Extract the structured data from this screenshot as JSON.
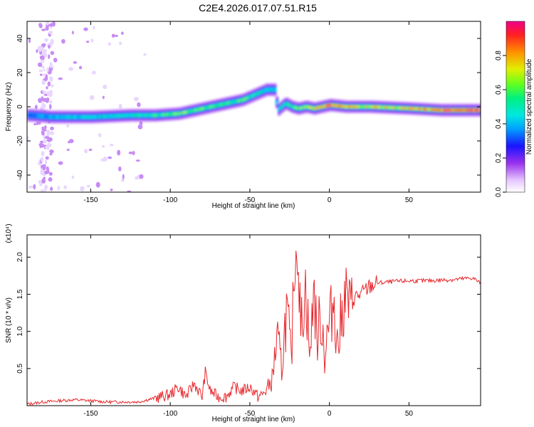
{
  "title": "C2E4.2026.017.07.51.R15",
  "chart_data": [
    {
      "type": "heatmap",
      "xlabel": "Height of straight line (km)",
      "ylabel": "Frequency (Hz)",
      "xlim": [
        -190,
        95
      ],
      "ylim": [
        -50,
        50
      ],
      "x_ticks": [
        -150,
        -100,
        -50,
        0,
        50
      ],
      "x_tick_labels": [
        "-150",
        "-100",
        "-50",
        "0",
        "50"
      ],
      "y_ticks": [
        -40,
        -20,
        0,
        20,
        40
      ],
      "y_tick_labels": [
        "-40",
        "-20",
        "0",
        "20",
        "40"
      ],
      "colorbar": {
        "label": "Normalized spectral amplitude",
        "range": [
          0,
          1
        ],
        "ticks": [
          0.0,
          0.2,
          0.4,
          0.6,
          0.8
        ],
        "tick_labels": [
          "0.0",
          "0.2",
          "0.4",
          "0.6",
          "0.8"
        ]
      },
      "ridge": {
        "x": [
          -188,
          -175,
          -150,
          -125,
          -110,
          -95,
          -85,
          -75,
          -65,
          -55,
          -50,
          -45,
          -40,
          -35,
          -33,
          -28,
          -24,
          -20,
          -15,
          -10,
          -5,
          0,
          10,
          25,
          50,
          70,
          80,
          95
        ],
        "frequency": [
          -5,
          -6,
          -6,
          -5,
          -5,
          -4,
          -2,
          0,
          2,
          4,
          6,
          8,
          10,
          10,
          -2,
          2,
          0,
          -1,
          0,
          -1,
          0,
          1,
          0,
          0,
          -1,
          -2,
          -2,
          -2
        ],
        "amplitude": [
          0.3,
          0.4,
          0.45,
          0.5,
          0.55,
          0.6,
          0.6,
          0.55,
          0.55,
          0.6,
          0.55,
          0.5,
          0.45,
          0.4,
          0.45,
          0.5,
          0.55,
          0.6,
          0.7,
          0.75,
          0.85,
          0.9,
          0.75,
          0.72,
          0.72,
          0.85,
          0.95,
          0.95
        ]
      }
    },
    {
      "type": "line",
      "xlabel": "Height of straight line (km)",
      "ylabel": "SNR (10 * v/v)",
      "y_multiplier": "(x10⁴)",
      "xlim": [
        -190,
        95
      ],
      "ylim": [
        0,
        2.3
      ],
      "x_ticks": [
        -150,
        -100,
        -50,
        0,
        50
      ],
      "x_tick_labels": [
        "-150",
        "-100",
        "-50",
        "0",
        "50"
      ],
      "y_ticks": [
        0.5,
        1.0,
        1.5,
        2.0
      ],
      "y_tick_labels": [
        "0.5",
        "1.0",
        "1.5",
        "2.0"
      ],
      "series": [
        {
          "color": "#e8282d",
          "x": [
            -190,
            -180,
            -160,
            -140,
            -120,
            -110,
            -100,
            -95,
            -90,
            -85,
            -80,
            -78,
            -75,
            -70,
            -65,
            -60,
            -55,
            -50,
            -47,
            -45,
            -42,
            -40,
            -36,
            -33,
            -30,
            -27,
            -24,
            -22,
            -20,
            -18,
            -15,
            -12,
            -10,
            -8,
            -5,
            -3,
            0,
            3,
            5,
            8,
            10,
            13,
            15,
            20,
            25,
            30,
            40,
            50,
            60,
            70,
            80,
            90,
            95
          ],
          "y": [
            0.02,
            0.05,
            0.08,
            0.05,
            0.05,
            0.1,
            0.15,
            0.25,
            0.12,
            0.3,
            0.12,
            0.45,
            0.2,
            0.12,
            0.12,
            0.25,
            0.2,
            0.25,
            0.18,
            0.12,
            0.15,
            0.2,
            0.35,
            0.9,
            0.5,
            1.3,
            0.6,
            1.9,
            2.2,
            1.0,
            1.6,
            0.6,
            1.7,
            0.9,
            1.2,
            0.7,
            1.1,
            1.45,
            0.8,
            1.2,
            1.55,
            1.3,
            1.45,
            1.5,
            1.6,
            1.65,
            1.67,
            1.68,
            1.68,
            1.69,
            1.7,
            1.72,
            1.65
          ]
        }
      ]
    }
  ]
}
